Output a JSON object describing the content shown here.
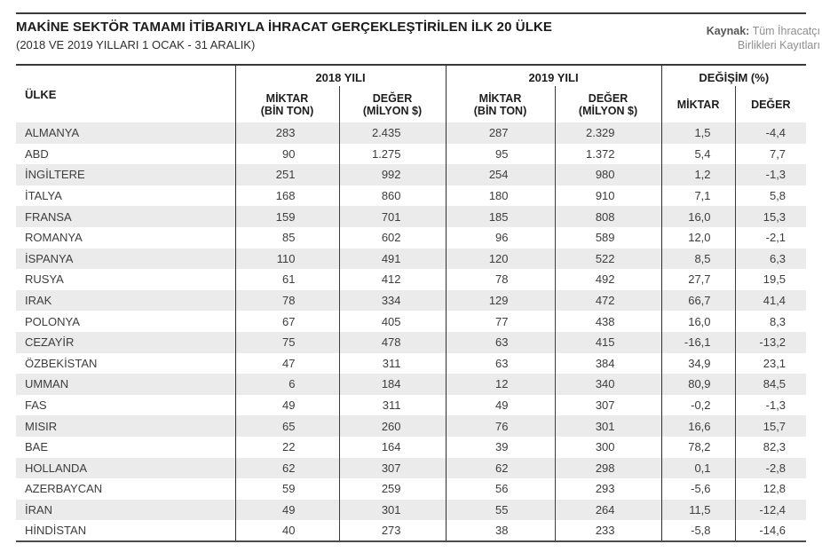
{
  "header": {
    "title": "MAKİNE SEKTÖR TAMAMI İTİBARIYLA İHRACAT GERÇEKLEŞTİRİLEN İLK 20 ÜLKE",
    "subtitle": "(2018 VE 2019 YILLARI 1 OCAK - 31 ARALIK)",
    "source_label": "Kaynak:",
    "source_line1": "Tüm İhracatçı",
    "source_line2": "Birlikleri Kayıtları"
  },
  "colors": {
    "stripe": "#ebebeb",
    "rule": "#3a3a3a",
    "text": "#3d3d3d",
    "muted": "#8f8f8f"
  },
  "table": {
    "columns": {
      "country": "ÜLKE",
      "group_2018": "2018 YILI",
      "group_2019": "2019 YILI",
      "group_change": "DEĞİŞİM (%)",
      "miktar_line1": "MİKTAR",
      "miktar_line2": "(BİN TON)",
      "deger_line1": "DEĞER",
      "deger_line2": "(MİLYON $)",
      "change_miktar": "MİKTAR",
      "change_deger": "DEĞER"
    },
    "rows": [
      {
        "country": "ALMANYA",
        "m2018": "283",
        "v2018": "2.435",
        "m2019": "287",
        "v2019": "2.329",
        "chg_m": "1,5",
        "chg_v": "-4,4"
      },
      {
        "country": "ABD",
        "m2018": "90",
        "v2018": "1.275",
        "m2019": "95",
        "v2019": "1.372",
        "chg_m": "5,4",
        "chg_v": "7,7"
      },
      {
        "country": "İNGİLTERE",
        "m2018": "251",
        "v2018": "992",
        "m2019": "254",
        "v2019": "980",
        "chg_m": "1,2",
        "chg_v": "-1,3"
      },
      {
        "country": "İTALYA",
        "m2018": "168",
        "v2018": "860",
        "m2019": "180",
        "v2019": "910",
        "chg_m": "7,1",
        "chg_v": "5,8"
      },
      {
        "country": "FRANSA",
        "m2018": "159",
        "v2018": "701",
        "m2019": "185",
        "v2019": "808",
        "chg_m": "16,0",
        "chg_v": "15,3"
      },
      {
        "country": "ROMANYA",
        "m2018": "85",
        "v2018": "602",
        "m2019": "96",
        "v2019": "589",
        "chg_m": "12,0",
        "chg_v": "-2,1"
      },
      {
        "country": "İSPANYA",
        "m2018": "110",
        "v2018": "491",
        "m2019": "120",
        "v2019": "522",
        "chg_m": "8,5",
        "chg_v": "6,3"
      },
      {
        "country": "RUSYA",
        "m2018": "61",
        "v2018": "412",
        "m2019": "78",
        "v2019": "492",
        "chg_m": "27,7",
        "chg_v": "19,5"
      },
      {
        "country": "IRAK",
        "m2018": "78",
        "v2018": "334",
        "m2019": "129",
        "v2019": "472",
        "chg_m": "66,7",
        "chg_v": "41,4"
      },
      {
        "country": "POLONYA",
        "m2018": "67",
        "v2018": "405",
        "m2019": "77",
        "v2019": "438",
        "chg_m": "16,0",
        "chg_v": "8,3"
      },
      {
        "country": "CEZAYİR",
        "m2018": "75",
        "v2018": "478",
        "m2019": "63",
        "v2019": "415",
        "chg_m": "-16,1",
        "chg_v": "-13,2"
      },
      {
        "country": "ÖZBEKİSTAN",
        "m2018": "47",
        "v2018": "311",
        "m2019": "63",
        "v2019": "384",
        "chg_m": "34,9",
        "chg_v": "23,1"
      },
      {
        "country": "UMMAN",
        "m2018": "6",
        "v2018": "184",
        "m2019": "12",
        "v2019": "340",
        "chg_m": "80,9",
        "chg_v": "84,5"
      },
      {
        "country": "FAS",
        "m2018": "49",
        "v2018": "311",
        "m2019": "49",
        "v2019": "307",
        "chg_m": "-0,2",
        "chg_v": "-1,3"
      },
      {
        "country": "MISIR",
        "m2018": "65",
        "v2018": "260",
        "m2019": "76",
        "v2019": "301",
        "chg_m": "16,6",
        "chg_v": "15,7"
      },
      {
        "country": "BAE",
        "m2018": "22",
        "v2018": "164",
        "m2019": "39",
        "v2019": "300",
        "chg_m": "78,2",
        "chg_v": "82,3"
      },
      {
        "country": "HOLLANDA",
        "m2018": "62",
        "v2018": "307",
        "m2019": "62",
        "v2019": "298",
        "chg_m": "0,1",
        "chg_v": "-2,8"
      },
      {
        "country": "AZERBAYCAN",
        "m2018": "59",
        "v2018": "259",
        "m2019": "56",
        "v2019": "293",
        "chg_m": "-5,6",
        "chg_v": "12,8"
      },
      {
        "country": "İRAN",
        "m2018": "49",
        "v2018": "301",
        "m2019": "55",
        "v2019": "264",
        "chg_m": "11,5",
        "chg_v": "-12,4"
      },
      {
        "country": "HİNDİSTAN",
        "m2018": "40",
        "v2018": "273",
        "m2019": "38",
        "v2019": "233",
        "chg_m": "-5,8",
        "chg_v": "-14,6"
      }
    ]
  },
  "chart_data": {
    "type": "table",
    "title": "MAKİNE SEKTÖR TAMAMI İTİBARIYLA İHRACAT GERÇEKLEŞTİRİLEN İLK 20 ÜLKE",
    "subtitle": "(2018 VE 2019 YILLARI 1 OCAK - 31 ARALIK)",
    "source": "Kaynak: Tüm İhracatçı Birlikleri Kayıtları",
    "columns": [
      "ÜLKE",
      "2018 MİKTAR (BİN TON)",
      "2018 DEĞER (MİLYON $)",
      "2019 MİKTAR (BİN TON)",
      "2019 DEĞER (MİLYON $)",
      "DEĞİŞİM MİKTAR (%)",
      "DEĞİŞİM DEĞER (%)"
    ],
    "rows": [
      [
        "ALMANYA",
        283,
        2435,
        287,
        2329,
        1.5,
        -4.4
      ],
      [
        "ABD",
        90,
        1275,
        95,
        1372,
        5.4,
        7.7
      ],
      [
        "İNGİLTERE",
        251,
        992,
        254,
        980,
        1.2,
        -1.3
      ],
      [
        "İTALYA",
        168,
        860,
        180,
        910,
        7.1,
        5.8
      ],
      [
        "FRANSA",
        159,
        701,
        185,
        808,
        16.0,
        15.3
      ],
      [
        "ROMANYA",
        85,
        602,
        96,
        589,
        12.0,
        -2.1
      ],
      [
        "İSPANYA",
        110,
        491,
        120,
        522,
        8.5,
        6.3
      ],
      [
        "RUSYA",
        61,
        412,
        78,
        492,
        27.7,
        19.5
      ],
      [
        "IRAK",
        78,
        334,
        129,
        472,
        66.7,
        41.4
      ],
      [
        "POLONYA",
        67,
        405,
        77,
        438,
        16.0,
        8.3
      ],
      [
        "CEZAYİR",
        75,
        478,
        63,
        415,
        -16.1,
        -13.2
      ],
      [
        "ÖZBEKİSTAN",
        47,
        311,
        63,
        384,
        34.9,
        23.1
      ],
      [
        "UMMAN",
        6,
        184,
        12,
        340,
        80.9,
        84.5
      ],
      [
        "FAS",
        49,
        311,
        49,
        307,
        -0.2,
        -1.3
      ],
      [
        "MISIR",
        65,
        260,
        76,
        301,
        16.6,
        15.7
      ],
      [
        "BAE",
        22,
        164,
        39,
        300,
        78.2,
        82.3
      ],
      [
        "HOLLANDA",
        62,
        307,
        62,
        298,
        0.1,
        -2.8
      ],
      [
        "AZERBAYCAN",
        59,
        259,
        56,
        293,
        -5.6,
        12.8
      ],
      [
        "İRAN",
        49,
        301,
        55,
        264,
        11.5,
        -12.4
      ],
      [
        "HİNDİSTAN",
        40,
        273,
        38,
        233,
        -5.8,
        -14.6
      ]
    ]
  }
}
